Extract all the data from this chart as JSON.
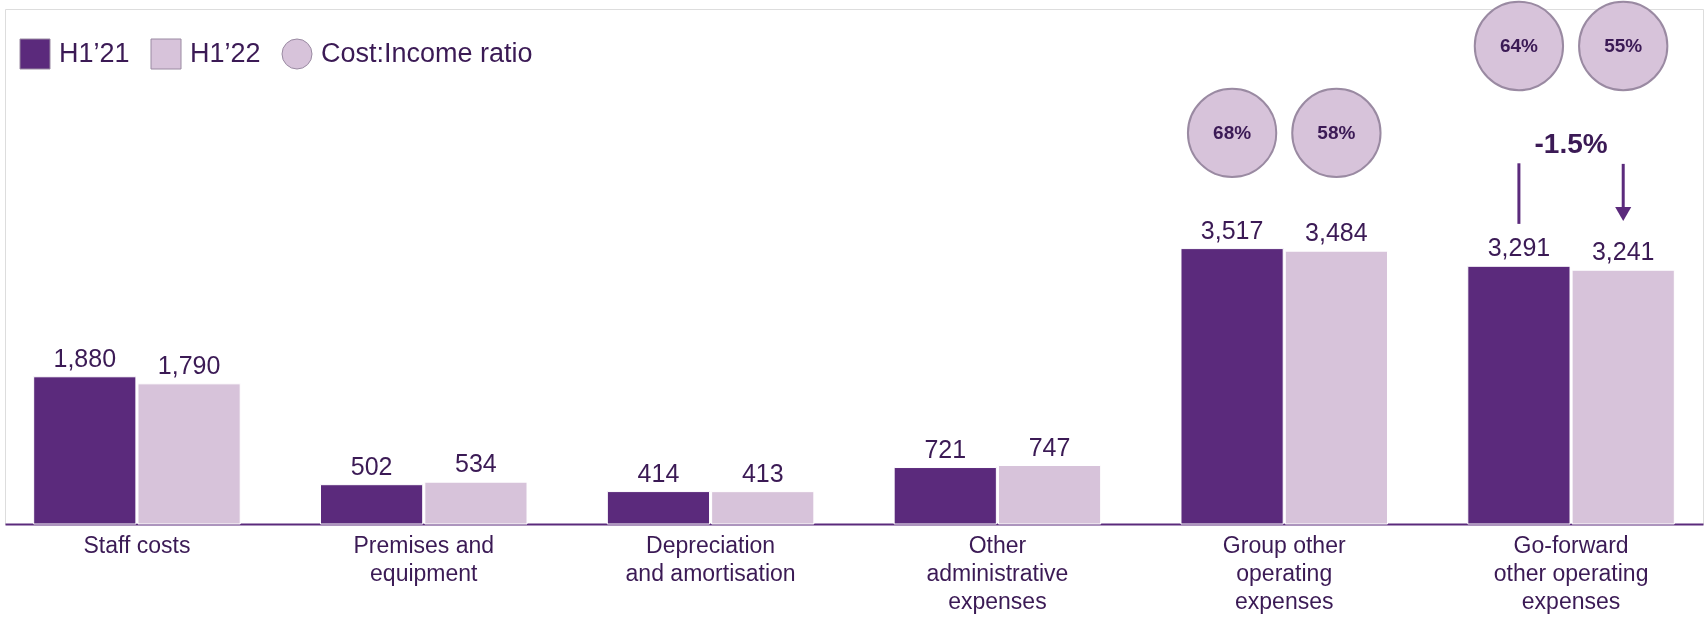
{
  "chart_data": {
    "type": "bar",
    "categories": [
      "Staff costs",
      "Premises and\nequipment",
      "Depreciation\nand amortisation",
      "Other\nadministrative\nexpenses",
      "Group other\noperating\nexpenses",
      "Go-forward\nother operating\nexpenses"
    ],
    "series": [
      {
        "name": "H1’21",
        "color": "#5b2a7c",
        "values": [
          1880,
          502,
          414,
          721,
          3517,
          3291
        ],
        "value_labels": [
          "1,880",
          "502",
          "414",
          "721",
          "3,517",
          "3,291"
        ]
      },
      {
        "name": "H1’22",
        "color": "#d7c3da",
        "values": [
          1790,
          534,
          413,
          747,
          3484,
          3241
        ],
        "value_labels": [
          "1,790",
          "534",
          "413",
          "747",
          "3,484",
          "3,241"
        ]
      },
      {
        "name": "Cost:Income ratio",
        "type": "scatter",
        "color": "#d7c3da",
        "values": [
          null,
          null,
          null,
          null,
          null,
          null
        ]
      }
    ],
    "legend": "top left",
    "annotations": [
      "68%",
      "58%",
      "64%",
      "55%",
      "-1.5%"
    ]
  }
}
